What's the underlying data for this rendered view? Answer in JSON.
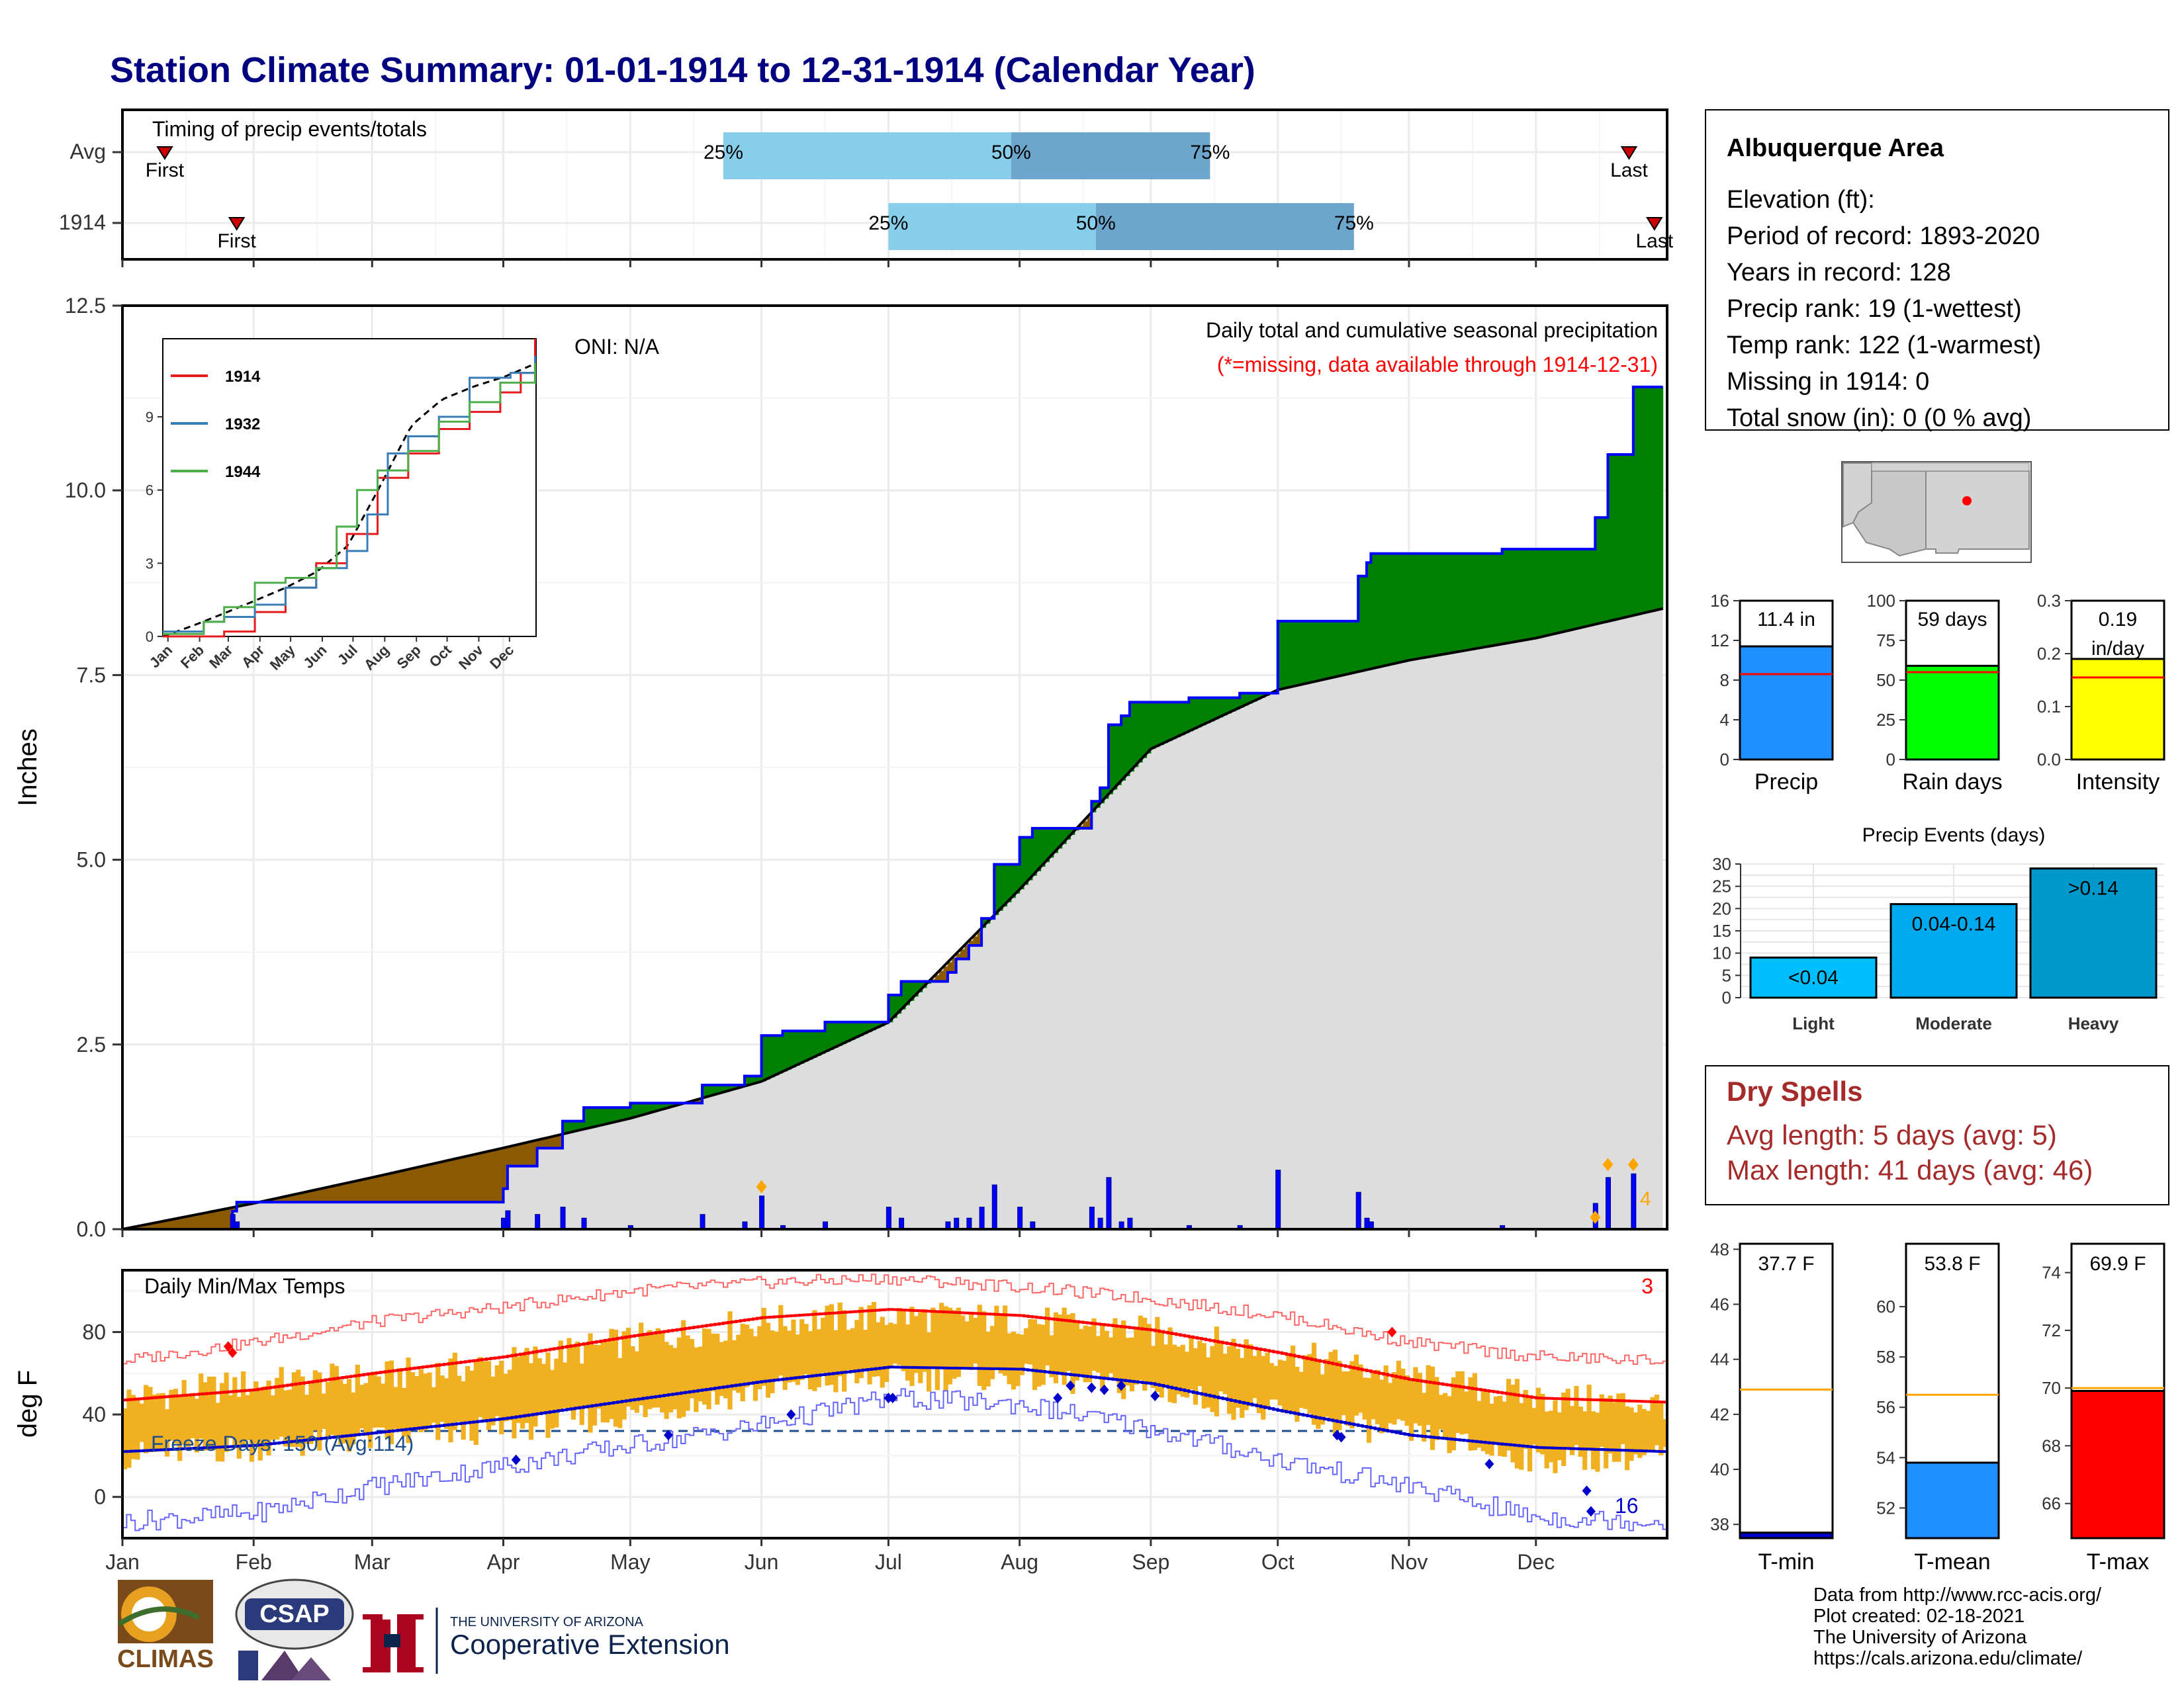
{
  "title": "Station Climate Summary: 01-01-1914 to 12-31-1914 (Calendar Year)",
  "timing": {
    "label": "Timing of precip events/totals",
    "rows": [
      {
        "name": "Avg",
        "first_label": "First",
        "last_label": "Last",
        "first_doy": 10,
        "last_doy": 356,
        "p25_doy": 142,
        "p50_doy": 210,
        "p75_doy": 257,
        "p25_label": "25%",
        "p50_label": "50%",
        "p75_label": "75%"
      },
      {
        "name": "1914",
        "first_label": "First",
        "last_label": "Last",
        "first_doy": 27,
        "last_doy": 362,
        "p25_doy": 181,
        "p50_doy": 230,
        "p75_doy": 291,
        "p25_label": "25%",
        "p50_label": "50%",
        "p75_label": "75%"
      }
    ]
  },
  "precip_main": {
    "ylabel": "Inches",
    "yticks": [
      "0.0",
      "2.5",
      "5.0",
      "7.5",
      "10.0",
      "12.5"
    ],
    "ylim": [
      0,
      12.5
    ],
    "oni": "ONI: N/A",
    "legend_title": "Daily total and cumulative seasonal precipitation",
    "legend_note": "(*=missing, data available through 1914-12-31)",
    "count_label": "4",
    "colors": {
      "above_avg": "#008000",
      "below_avg": "#8B5A00",
      "avg_fill": "#DDDDDD",
      "obs_line": "#0000FF",
      "avg_line": "#000000",
      "marker": "#FFA500"
    }
  },
  "inset": {
    "years": [
      "1914",
      "1932",
      "1944"
    ],
    "colors": [
      "#E41A1C",
      "#377EB8",
      "#4DAF4A"
    ],
    "yticks": [
      "0",
      "3",
      "6",
      "9"
    ],
    "months": [
      "Jan",
      "Feb",
      "Mar",
      "Apr",
      "May",
      "Jun",
      "Jul",
      "Aug",
      "Sep",
      "Oct",
      "Nov",
      "Dec"
    ]
  },
  "temps": {
    "label": "Daily Min/Max Temps",
    "ylabel": "deg F",
    "yticks": [
      "0",
      "40",
      "80"
    ],
    "freeze_label": "Freeze Days: 150 (Avg:114)",
    "max_record_count": "3",
    "min_record_count": "16",
    "colors": {
      "range_bar": "#F0B020",
      "avg_max": "#FF0000",
      "avg_min": "#0000CC",
      "record_max": "#FF6666",
      "record_min": "#6666FF",
      "freeze_line": "#1F4E8C"
    }
  },
  "months": [
    "Jan",
    "Feb",
    "Mar",
    "Apr",
    "May",
    "Jun",
    "Jul",
    "Aug",
    "Sep",
    "Oct",
    "Nov",
    "Dec"
  ],
  "station": {
    "name": "Albuquerque Area",
    "lines": [
      "Elevation (ft):",
      "Period of record: 1893-2020",
      "Years in record: 128",
      "Precip rank: 19 (1-wettest)",
      "Temp rank: 122 (1-warmest)",
      "Missing in 1914: 0",
      "Total snow (in): 0 (0 % avg)"
    ]
  },
  "summary_bars": [
    {
      "label": "Precip",
      "value_label": "11.4 in",
      "value": 11.4,
      "avg": 8.6,
      "ymax": 16,
      "yticks": [
        "0",
        "4",
        "8",
        "12",
        "16"
      ],
      "color": "#1E90FF"
    },
    {
      "label": "Rain days",
      "value_label": "59 days",
      "value": 59,
      "avg": 55,
      "ymax": 100,
      "yticks": [
        "0",
        "25",
        "50",
        "75",
        "100"
      ],
      "color": "#00FF00"
    },
    {
      "label": "Intensity",
      "value_label": "0.19 in/day",
      "value_line1": "0.19",
      "value_line2": "in/day",
      "value": 0.19,
      "avg": 0.155,
      "ymax": 0.3,
      "yticks": [
        "0.0",
        "0.1",
        "0.2",
        "0.3"
      ],
      "color": "#FFFF00"
    }
  ],
  "precip_events": {
    "title": "Precip Events (days)",
    "yticks": [
      "0",
      "5",
      "10",
      "15",
      "20",
      "25",
      "30"
    ],
    "bars": [
      {
        "category": "Light",
        "label": "<0.04",
        "value": 9,
        "color": "#00BFFF"
      },
      {
        "category": "Moderate",
        "label": "0.04-0.14",
        "value": 21,
        "color": "#00AAEE"
      },
      {
        "category": "Heavy",
        "label": ">0.14",
        "value": 29,
        "color": "#0099CC"
      }
    ]
  },
  "dry_spells": {
    "title": "Dry Spells",
    "avg_line": "Avg length: 5 days (avg: 5)",
    "max_line": "Max length: 41 days (avg: 46)"
  },
  "temp_bars": [
    {
      "label": "T-min",
      "value_label": "37.7 F",
      "value": 37.7,
      "avg": 42.9,
      "ymin": 37.5,
      "ymax": 48.2,
      "yticks": [
        "38",
        "40",
        "42",
        "44",
        "46",
        "48"
      ],
      "color": "#0000CC"
    },
    {
      "label": "T-mean",
      "value_label": "53.8 F",
      "value": 53.8,
      "avg": 56.5,
      "ymin": 50.8,
      "ymax": 62.5,
      "yticks": [
        "52",
        "54",
        "56",
        "58",
        "60"
      ],
      "color": "#1E90FF"
    },
    {
      "label": "T-max",
      "value_label": "69.9 F",
      "value": 69.9,
      "avg": 70.0,
      "ymin": 64.8,
      "ymax": 75.0,
      "yticks": [
        "66",
        "68",
        "70",
        "72",
        "74"
      ],
      "color": "#FF0000"
    }
  ],
  "credits": [
    "Data from http://www.rcc-acis.org/",
    "Plot created: 02-18-2021",
    "The University of Arizona",
    "https://cals.arizona.edu/climate/"
  ],
  "logos": {
    "climas": "CLIMAS",
    "csap": "CSAP",
    "ua_small": "THE UNIVERSITY OF ARIZONA",
    "ua_big": "Cooperative Extension"
  },
  "chart_data": [
    {
      "type": "area",
      "title": "Daily total and cumulative seasonal precipitation",
      "ylabel": "Inches",
      "ylim": [
        0,
        12.5
      ],
      "x": [
        "Jan",
        "Feb",
        "Mar",
        "Apr",
        "May",
        "Jun",
        "Jul",
        "Aug",
        "Sep",
        "Oct",
        "Nov",
        "Dec",
        "Dec 31"
      ],
      "series": [
        {
          "name": "1914",
          "values": [
            0.0,
            0.0,
            0.0,
            0.3,
            1.5,
            1.6,
            2.8,
            4.8,
            6.8,
            7.7,
            8.9,
            8.9,
            11.4
          ]
        },
        {
          "name": "Avg",
          "values": [
            0.0,
            0.35,
            0.7,
            1.1,
            1.5,
            2.0,
            2.8,
            4.6,
            6.5,
            7.3,
            7.7,
            8.0,
            8.4
          ]
        }
      ],
      "daily_precip_inches": [
        {
          "date": "Jan 27",
          "value": 0.2
        },
        {
          "date": "Jan 28",
          "value": 0.1
        },
        {
          "date": "Apr 01",
          "value": 0.15
        },
        {
          "date": "Apr 02",
          "value": 0.25
        },
        {
          "date": "Apr 09",
          "value": 0.2
        },
        {
          "date": "Apr 15",
          "value": 0.3
        },
        {
          "date": "Apr 20",
          "value": 0.15
        },
        {
          "date": "May 01",
          "value": 0.05
        },
        {
          "date": "May 18",
          "value": 0.2
        },
        {
          "date": "May 28",
          "value": 0.1
        },
        {
          "date": "Jun 01",
          "value": 0.45
        },
        {
          "date": "Jun 06",
          "value": 0.05
        },
        {
          "date": "Jun 16",
          "value": 0.1
        },
        {
          "date": "Jul 01",
          "value": 0.3
        },
        {
          "date": "Jul 04",
          "value": 0.15
        },
        {
          "date": "Jul 15",
          "value": 0.1
        },
        {
          "date": "Jul 17",
          "value": 0.15
        },
        {
          "date": "Jul 20",
          "value": 0.15
        },
        {
          "date": "Jul 23",
          "value": 0.3
        },
        {
          "date": "Jul 26",
          "value": 0.6
        },
        {
          "date": "Aug 01",
          "value": 0.3
        },
        {
          "date": "Aug 04",
          "value": 0.1
        },
        {
          "date": "Aug 18",
          "value": 0.3
        },
        {
          "date": "Aug 20",
          "value": 0.15
        },
        {
          "date": "Aug 22",
          "value": 0.7
        },
        {
          "date": "Aug 25",
          "value": 0.1
        },
        {
          "date": "Aug 27",
          "value": 0.15
        },
        {
          "date": "Sep 10",
          "value": 0.05
        },
        {
          "date": "Sep 22",
          "value": 0.05
        },
        {
          "date": "Oct 01",
          "value": 0.8
        },
        {
          "date": "Oct 20",
          "value": 0.5
        },
        {
          "date": "Oct 22",
          "value": 0.15
        },
        {
          "date": "Oct 23",
          "value": 0.1
        },
        {
          "date": "Nov 23",
          "value": 0.05
        },
        {
          "date": "Dec 15",
          "value": 0.35
        },
        {
          "date": "Dec 18",
          "value": 0.7
        },
        {
          "date": "Dec 24",
          "value": 0.75
        }
      ]
    },
    {
      "type": "line",
      "title": "Daily Min/Max Temps",
      "ylabel": "deg F",
      "ylim": [
        -20,
        110
      ],
      "x": [
        "Jan",
        "Feb",
        "Mar",
        "Apr",
        "May",
        "Jun",
        "Jul",
        "Aug",
        "Sep",
        "Oct",
        "Nov",
        "Dec",
        "Dec 31"
      ],
      "series": [
        {
          "name": "avg max",
          "values": [
            47,
            52,
            60,
            68,
            78,
            87,
            91,
            88,
            81,
            70,
            57,
            48,
            46
          ]
        },
        {
          "name": "avg min",
          "values": [
            22,
            25,
            31,
            38,
            47,
            56,
            63,
            62,
            55,
            42,
            30,
            24,
            22
          ]
        },
        {
          "name": "record max",
          "values": [
            66,
            75,
            85,
            92,
            100,
            104,
            106,
            102,
            96,
            88,
            75,
            68,
            66
          ]
        },
        {
          "name": "record min",
          "values": [
            -12,
            -8,
            5,
            15,
            25,
            35,
            48,
            45,
            33,
            18,
            5,
            -10,
            -12
          ]
        },
        {
          "name": "1914 max",
          "values": [
            48,
            55,
            58,
            65,
            76,
            85,
            88,
            86,
            80,
            70,
            58,
            48,
            45
          ]
        },
        {
          "name": "1914 min",
          "values": [
            20,
            24,
            28,
            33,
            40,
            52,
            58,
            58,
            52,
            40,
            30,
            18,
            20
          ]
        }
      ],
      "freeze_line": 32
    },
    {
      "type": "bar",
      "categories": [
        "Light",
        "Moderate",
        "Heavy"
      ],
      "values": [
        9,
        21,
        29
      ],
      "title": "Precip Events (days)",
      "ylim": [
        0,
        30
      ]
    },
    {
      "type": "bar",
      "categories": [
        "Precip",
        "Rain days",
        "Intensity"
      ],
      "values": [
        11.4,
        59,
        0.19
      ],
      "averages": [
        8.6,
        55,
        0.155
      ]
    },
    {
      "type": "bar",
      "categories": [
        "T-min",
        "T-mean",
        "T-max"
      ],
      "values": [
        37.7,
        53.8,
        69.9
      ],
      "averages": [
        42.9,
        56.5,
        70.0
      ]
    }
  ]
}
